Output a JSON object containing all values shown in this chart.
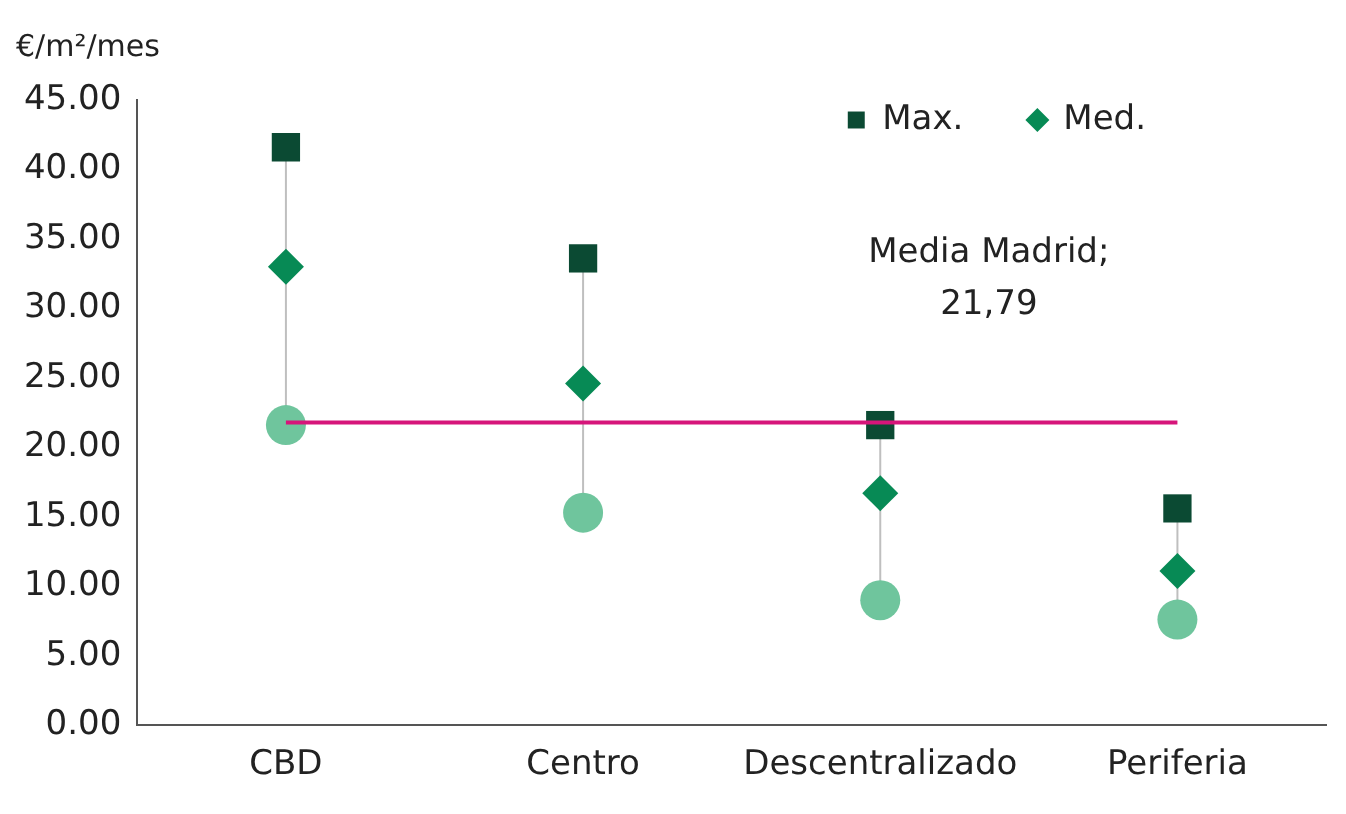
{
  "chart_data": {
    "type": "scatter",
    "ylabel": "€/m²/mes",
    "categories": [
      "CBD",
      "Centro",
      "Descentralizado",
      "Periferia"
    ],
    "series": [
      {
        "name": "Max.",
        "color": "#0b4a33",
        "marker": "square",
        "values": [
          41.6,
          33.6,
          21.6,
          15.6
        ]
      },
      {
        "name": "Med.",
        "color": "#078a55",
        "marker": "diamond",
        "values": [
          33.0,
          24.6,
          16.7,
          11.1
        ]
      },
      {
        "color": "#6fc59d",
        "marker": "circle",
        "values": [
          21.6,
          15.3,
          9.0,
          7.6
        ]
      }
    ],
    "ylim": [
      0,
      45
    ],
    "yticks": [
      {
        "value": 0,
        "label": "0.00"
      },
      {
        "value": 5,
        "label": "5.00"
      },
      {
        "value": 10,
        "label": "10.00"
      },
      {
        "value": 15,
        "label": "15.00"
      },
      {
        "value": 20,
        "label": "20.00"
      },
      {
        "value": 25,
        "label": "25.00"
      },
      {
        "value": 30,
        "label": "30.00"
      },
      {
        "value": 35,
        "label": "35.00"
      },
      {
        "value": 40,
        "label": "40.00"
      },
      {
        "value": 45,
        "label": "45.00"
      }
    ],
    "ref_lines": [
      {
        "axis": "y",
        "value": 21.79,
        "label": "Media Madrid;\n21,79",
        "color": "#d6157a"
      }
    ],
    "grid": false,
    "legend": "top right"
  }
}
